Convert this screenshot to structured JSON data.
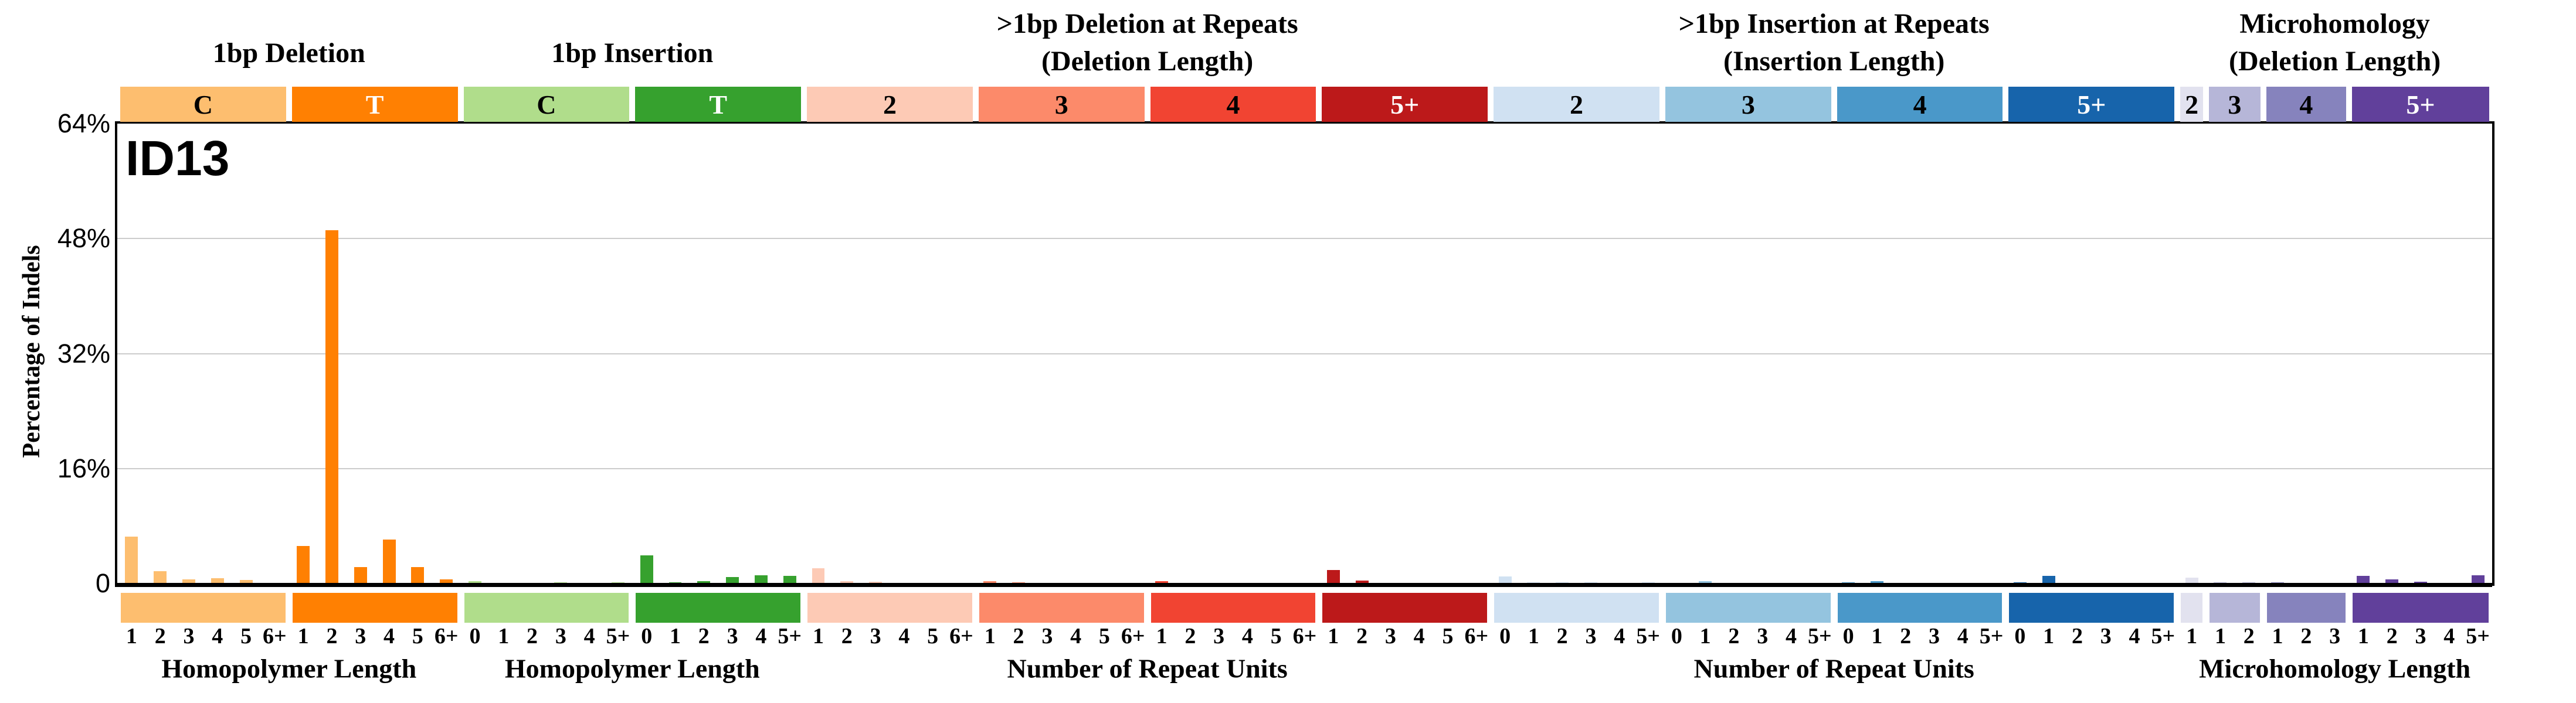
{
  "page": {
    "background": "#ffffff"
  },
  "chart_data": {
    "type": "bar",
    "title": "ID13",
    "y_axis": {
      "label": "Percentage of Indels",
      "ticks": [
        {
          "label": "64%",
          "value": 64
        },
        {
          "label": "48%",
          "value": 48
        },
        {
          "label": "32%",
          "value": 32
        },
        {
          "label": "16%",
          "value": 16
        },
        {
          "label": "0",
          "value": 0
        }
      ],
      "max": 64,
      "grid": true
    },
    "group_titles": [
      {
        "line1": "1bp Deletion",
        "line2": "",
        "sections": [
          0,
          1
        ]
      },
      {
        "line1": "1bp Insertion",
        "line2": "",
        "sections": [
          2,
          3
        ]
      },
      {
        "line1": ">1bp Deletion at Repeats",
        "line2": "(Deletion Length)",
        "sections": [
          4,
          7
        ]
      },
      {
        "line1": ">1bp Insertion at Repeats",
        "line2": "(Insertion Length)",
        "sections": [
          8,
          11
        ]
      },
      {
        "line1": "Microhomology",
        "line2": "(Deletion Length)",
        "sections": [
          12,
          15
        ]
      }
    ],
    "xaxis_groups": [
      {
        "label": "Homopolymer Length",
        "sections": [
          0,
          1
        ]
      },
      {
        "label": "Homopolymer Length",
        "sections": [
          2,
          3
        ]
      },
      {
        "label": "Number of Repeat Units",
        "sections": [
          4,
          7
        ]
      },
      {
        "label": "Number of Repeat Units",
        "sections": [
          8,
          11
        ]
      },
      {
        "label": "Microhomology Length",
        "sections": [
          12,
          15
        ]
      }
    ],
    "sections": [
      {
        "name": "1bp-deletion-C",
        "box_label": "C",
        "color": "#FDBE6F",
        "box_text_color": "#000000",
        "ticks": [
          "1",
          "2",
          "3",
          "4",
          "5",
          "6+"
        ],
        "values": [
          6.5,
          1.7,
          0.55,
          0.7,
          0.5,
          0.12
        ]
      },
      {
        "name": "1bp-deletion-T",
        "box_label": "T",
        "color": "#FF8002",
        "box_text_color": "#FFFFFF",
        "ticks": [
          "1",
          "2",
          "3",
          "4",
          "5",
          "6+"
        ],
        "values": [
          5.2,
          49.2,
          2.3,
          6.1,
          2.3,
          0.6
        ]
      },
      {
        "name": "1bp-insertion-C",
        "box_label": "C",
        "color": "#B0DD8B",
        "box_text_color": "#000000",
        "ticks": [
          "0",
          "1",
          "2",
          "3",
          "4",
          "5+"
        ],
        "values": [
          0.3,
          0.12,
          0.1,
          0.2,
          0.05,
          0.2
        ]
      },
      {
        "name": "1bp-insertion-T",
        "box_label": "T",
        "color": "#36A12E",
        "box_text_color": "#FFFFFF",
        "ticks": [
          "0",
          "1",
          "2",
          "3",
          "4",
          "5+"
        ],
        "values": [
          3.9,
          0.2,
          0.35,
          0.9,
          1.15,
          1.05
        ]
      },
      {
        "name": "deletion-repeats-2",
        "box_label": "2",
        "color": "#FDCAB5",
        "box_text_color": "#000000",
        "ticks": [
          "1",
          "2",
          "3",
          "4",
          "5",
          "6+"
        ],
        "values": [
          2.1,
          0.3,
          0.25,
          0.05,
          0.05,
          0.05
        ]
      },
      {
        "name": "deletion-repeats-3",
        "box_label": "3",
        "color": "#FC8A6A",
        "box_text_color": "#000000",
        "ticks": [
          "1",
          "2",
          "3",
          "4",
          "5",
          "6+"
        ],
        "values": [
          0.3,
          0.15,
          0.05,
          0.05,
          0.05,
          0.05
        ]
      },
      {
        "name": "deletion-repeats-4",
        "box_label": "4",
        "color": "#F14432",
        "box_text_color": "#000000",
        "ticks": [
          "1",
          "2",
          "3",
          "4",
          "5",
          "6+"
        ],
        "values": [
          0.3,
          0.05,
          0.05,
          0.05,
          0.05,
          0.05
        ]
      },
      {
        "name": "deletion-repeats-5plus",
        "box_label": "5+",
        "color": "#BC191A",
        "box_text_color": "#FFFFFF",
        "ticks": [
          "1",
          "2",
          "3",
          "4",
          "5",
          "6+"
        ],
        "values": [
          1.9,
          0.4,
          0.05,
          0.05,
          0.05,
          0.05
        ]
      },
      {
        "name": "insertion-repeats-2",
        "box_label": "2",
        "color": "#D0E1F2",
        "box_text_color": "#000000",
        "ticks": [
          "0",
          "1",
          "2",
          "3",
          "4",
          "5+"
        ],
        "values": [
          1.0,
          0.2,
          0.2,
          0.2,
          0.1,
          0.2
        ]
      },
      {
        "name": "insertion-repeats-3",
        "box_label": "3",
        "color": "#94C4DF",
        "box_text_color": "#000000",
        "ticks": [
          "0",
          "1",
          "2",
          "3",
          "4",
          "5+"
        ],
        "values": [
          0.1,
          0.3,
          0.05,
          0.05,
          0.05,
          0.05
        ]
      },
      {
        "name": "insertion-repeats-4",
        "box_label": "4",
        "color": "#4A98C9",
        "box_text_color": "#000000",
        "ticks": [
          "0",
          "1",
          "2",
          "3",
          "4",
          "5+"
        ],
        "values": [
          0.2,
          0.3,
          0.05,
          0.05,
          0.05,
          0.05
        ]
      },
      {
        "name": "insertion-repeats-5plus",
        "box_label": "5+",
        "color": "#1764AB",
        "box_text_color": "#FFFFFF",
        "ticks": [
          "0",
          "1",
          "2",
          "3",
          "4",
          "5+"
        ],
        "values": [
          0.2,
          1.1,
          0.05,
          0.05,
          0.05,
          0.05
        ]
      },
      {
        "name": "microhomology-2",
        "box_label": "2",
        "color": "#E2E2EF",
        "box_text_color": "#000000",
        "ticks": [
          "1"
        ],
        "values": [
          0.85
        ]
      },
      {
        "name": "microhomology-3",
        "box_label": "3",
        "color": "#B6B6D8",
        "box_text_color": "#000000",
        "ticks": [
          "1",
          "2"
        ],
        "values": [
          0.15,
          0.15
        ]
      },
      {
        "name": "microhomology-4",
        "box_label": "4",
        "color": "#8683BD",
        "box_text_color": "#000000",
        "ticks": [
          "1",
          "2",
          "3"
        ],
        "values": [
          0.2,
          0.05,
          0.05
        ]
      },
      {
        "name": "microhomology-5plus",
        "box_label": "5+",
        "color": "#61409B",
        "box_text_color": "#FFFFFF",
        "ticks": [
          "1",
          "2",
          "3",
          "4",
          "5+"
        ],
        "values": [
          1.05,
          0.6,
          0.25,
          0.05,
          1.15
        ]
      }
    ]
  }
}
